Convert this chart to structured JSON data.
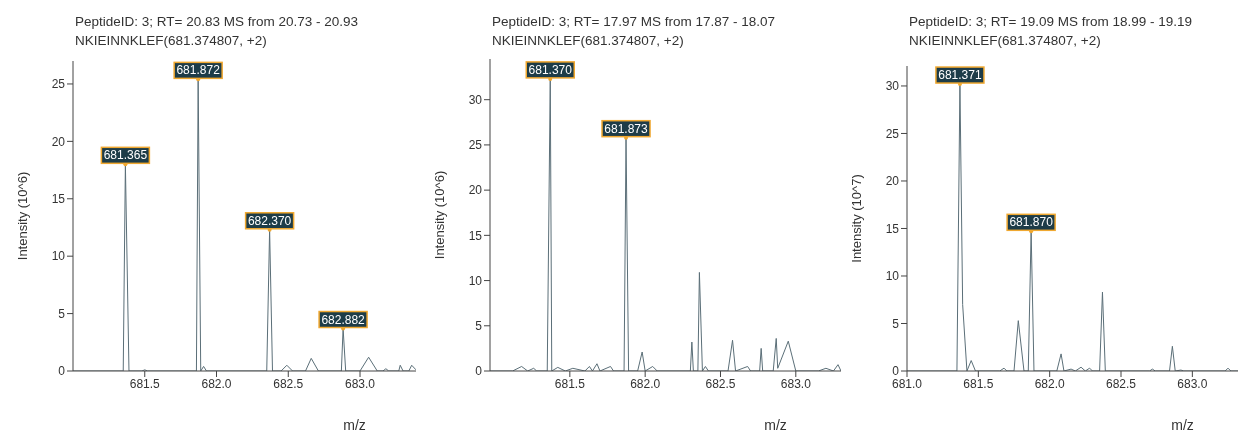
{
  "chart_data": [
    {
      "type": "line",
      "title": "PeptideID: 3; RT= 20.83 MS from 20.73 - 20.93",
      "subtitle": "NKIEINNKLEF(681.374807, +2)",
      "xlabel": "m/z",
      "ylabel": "Intensity (10^6)",
      "color": "#5b6f78",
      "marker": "none",
      "x": [
        681.0,
        681.35,
        681.365,
        681.39,
        681.48,
        681.5,
        681.52,
        681.86,
        681.872,
        681.89,
        681.91,
        681.93,
        682.35,
        682.37,
        682.39,
        682.45,
        682.49,
        682.53,
        682.62,
        682.66,
        682.71,
        682.87,
        682.882,
        682.9,
        683.0,
        683.06,
        683.12,
        683.16,
        683.18,
        683.2,
        683.27,
        683.28,
        683.3,
        683.34,
        683.36,
        683.39
      ],
      "values": [
        0,
        0,
        18,
        0,
        0,
        0.1,
        0,
        0,
        25.4,
        0,
        0.4,
        0,
        0,
        12.3,
        0,
        0,
        0.5,
        0,
        0,
        1.1,
        0,
        0,
        3.7,
        0,
        0,
        1.2,
        0,
        0,
        0.2,
        0,
        0,
        0.5,
        0,
        0,
        0.5,
        0.1
      ],
      "xlim": [
        681.0,
        683.39
      ],
      "ylim": [
        0,
        27
      ],
      "xticks": [
        {
          "value": 681.5,
          "label": "681.5"
        },
        {
          "value": 682,
          "label": "682.0"
        },
        {
          "value": 682.5,
          "label": "682.5"
        },
        {
          "value": 683,
          "label": "683.0"
        }
      ],
      "yticks": [
        0,
        5,
        10,
        15,
        20,
        25
      ],
      "annotations": [
        {
          "text": "681.365",
          "x": 681.365,
          "y": 18
        },
        {
          "text": "681.872",
          "x": 681.872,
          "y": 25.4
        },
        {
          "text": "682.370",
          "x": 682.37,
          "y": 12.3
        },
        {
          "text": "682.882",
          "x": 682.882,
          "y": 3.7
        }
      ]
    },
    {
      "type": "line",
      "title": "PeptideID: 3; RT= 17.97 MS from 17.87 - 18.07",
      "subtitle": "NKIEINNKLEF(681.374807, +2)",
      "xlabel": "m/z",
      "ylabel": "Intensity (10^6)",
      "color": "#5b6f78",
      "marker": "none",
      "x": [
        680.97,
        681.12,
        681.18,
        681.22,
        681.26,
        681.28,
        681.35,
        681.37,
        681.38,
        681.42,
        681.47,
        681.52,
        681.6,
        681.63,
        681.65,
        681.68,
        681.7,
        681.77,
        681.79,
        681.86,
        681.873,
        681.89,
        681.95,
        681.98,
        682.0,
        682.05,
        682.08,
        682.3,
        682.31,
        682.32,
        682.35,
        682.36,
        682.38,
        682.4,
        682.42,
        682.55,
        682.58,
        682.6,
        682.68,
        682.7,
        682.76,
        682.77,
        682.78,
        682.85,
        682.87,
        682.88,
        682.95,
        683.0,
        683.15,
        683.2,
        683.25,
        683.28,
        683.3
      ],
      "values": [
        0,
        0,
        0.5,
        0,
        0.3,
        0,
        0,
        32.3,
        0,
        0.4,
        0,
        0.3,
        0,
        0.5,
        0,
        0.8,
        0,
        0.5,
        0,
        0,
        25.8,
        0,
        0,
        2.1,
        0,
        0.5,
        0,
        0,
        3.2,
        0,
        0,
        10.9,
        0,
        0.5,
        0,
        0,
        3.4,
        0,
        0.5,
        0,
        0,
        2.5,
        0,
        0,
        3.6,
        0.3,
        3.3,
        0,
        0,
        0.3,
        0,
        0.7,
        0
      ],
      "xlim": [
        680.97,
        683.3
      ],
      "ylim": [
        0,
        34.5
      ],
      "xticks": [
        {
          "value": 681.5,
          "label": "681.5"
        },
        {
          "value": 682,
          "label": "682.0"
        },
        {
          "value": 682.5,
          "label": "682.5"
        },
        {
          "value": 683,
          "label": "683.0"
        }
      ],
      "yticks": [
        0,
        5,
        10,
        15,
        20,
        25,
        30
      ],
      "annotations": [
        {
          "text": "681.370",
          "x": 681.37,
          "y": 32.3
        },
        {
          "text": "681.873",
          "x": 681.873,
          "y": 25.8
        }
      ]
    },
    {
      "type": "line",
      "title": "PeptideID: 3; RT= 19.09 MS from 18.99 - 19.19",
      "subtitle": "NKIEINNKLEF(681.374807, +2)",
      "xlabel": "m/z",
      "ylabel": "Intensity (10^7)",
      "color": "#5b6f78",
      "marker": "none",
      "x": [
        681.0,
        681.35,
        681.371,
        681.39,
        681.42,
        681.45,
        681.48,
        681.65,
        681.68,
        681.7,
        681.75,
        681.78,
        681.82,
        681.85,
        681.87,
        681.89,
        682.05,
        682.08,
        682.1,
        682.15,
        682.18,
        682.22,
        682.25,
        682.28,
        682.3,
        682.35,
        682.37,
        682.39,
        682.7,
        682.72,
        682.74,
        682.84,
        682.86,
        682.88,
        682.92,
        682.94,
        683.23,
        683.25,
        683.27,
        683.32
      ],
      "values": [
        0,
        0,
        30.2,
        7,
        0,
        1.1,
        0,
        0,
        0.3,
        0,
        0,
        5.3,
        0,
        0,
        14.7,
        0,
        0,
        1.8,
        0,
        0.2,
        0,
        0.4,
        0,
        0.3,
        0,
        0,
        8.3,
        0,
        0,
        0.2,
        0,
        0,
        2.6,
        0,
        0.1,
        0,
        0,
        0.3,
        0,
        0
      ],
      "xlim": [
        681.0,
        683.32
      ],
      "ylim": [
        0,
        32.1
      ],
      "xticks": [
        {
          "value": 681,
          "label": "681.0"
        },
        {
          "value": 681.5,
          "label": "681.5"
        },
        {
          "value": 682,
          "label": "682.0"
        },
        {
          "value": 682.5,
          "label": "682.5"
        },
        {
          "value": 683,
          "label": "683.0"
        }
      ],
      "yticks": [
        0,
        5,
        10,
        15,
        20,
        25,
        30
      ],
      "annotations": [
        {
          "text": "681.371",
          "x": 681.371,
          "y": 30.2
        },
        {
          "text": "681.870",
          "x": 681.87,
          "y": 14.7
        }
      ]
    }
  ]
}
